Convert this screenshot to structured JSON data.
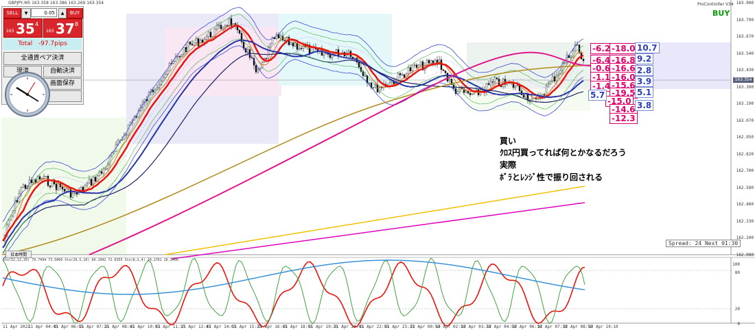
{
  "chart_header": {
    "symbol_line": "GBPJPY,M5  163.358 163.386 163.269 163.354",
    "controller": "ProController V34"
  },
  "buy_label": "BUY",
  "panel": {
    "sell_label": "SELL",
    "buy_label": "BUY",
    "lot": "0.05",
    "sell_prefix": "163",
    "sell_big": "35",
    "sell_sup": "4",
    "buy_prefix": "163",
    "buy_big": "37",
    "buy_sup": "8",
    "total_label": "Total",
    "total_value": "-97.7pips",
    "close_all_button": "全通貨ペア決済",
    "btn_left_partial": "現済",
    "btn_auto": "自動決済",
    "btn_save": "画面保存",
    "clock_label": "日本時間"
  },
  "annotation": {
    "line1": "買い",
    "line2": "ｸﾛｽ円買ってれば何とかなるだろう",
    "line3": "実際",
    "line4": "ﾎﾞﾗとﾚﾝｼﾞ性で振り回される"
  },
  "pink_values": [
    "-6.2",
    "-6.4",
    "-0.6",
    "-1.1",
    "-1.4",
    "-18.0",
    "-16.8",
    "-16.6",
    "-16.0",
    "-15.6",
    "-19.5",
    "-15.0",
    "-14.6",
    "-12.3"
  ],
  "blue_values": [
    "10.7",
    "9.2",
    "2.8",
    "3.9",
    "5.1",
    "3.8",
    "5.7"
  ],
  "spread_label": "Spread: 24 Next 01:30",
  "price_now": "163.354",
  "price_axis": [
    "163.900",
    "163.790",
    "163.670",
    "163.540",
    "163.430",
    "163.300",
    "163.190",
    "163.070",
    "162.950",
    "162.820",
    "162.700",
    "162.580",
    "162.460",
    "162.330",
    "162.200",
    "162.080"
  ],
  "osc_header": "Sto(52,12,26) 79.7494 73.5069  Sto(20,5,10) 60.1942 72.0355  Sto(8,2,4) 28.2761 26.3466",
  "osc_axis": [
    "100",
    "80",
    "20",
    "0"
  ],
  "time_axis": [
    "11 Apr 2022",
    "11 Apr 04:45",
    "11 Apr 06:05",
    "11 Apr 07:25",
    "11 Apr 08:45",
    "11 Apr 10:05",
    "11 Apr 11:25",
    "11 Apr 12:45",
    "11 Apr 14:05",
    "11 Apr 15:25",
    "11 Apr 16:45",
    "11 Apr 18:05",
    "11 Apr 19:25",
    "11 Apr 20:45",
    "11 Apr 22:05",
    "11 Apr 23:25",
    "12 Apr 00:50",
    "12 Apr 02:10",
    "12 Apr 03:30",
    "12 Apr 04:50",
    "12 Apr 06:10",
    "12 Apr 07:30",
    "12 Apr 08:50",
    "12 Apr 10:10"
  ]
}
